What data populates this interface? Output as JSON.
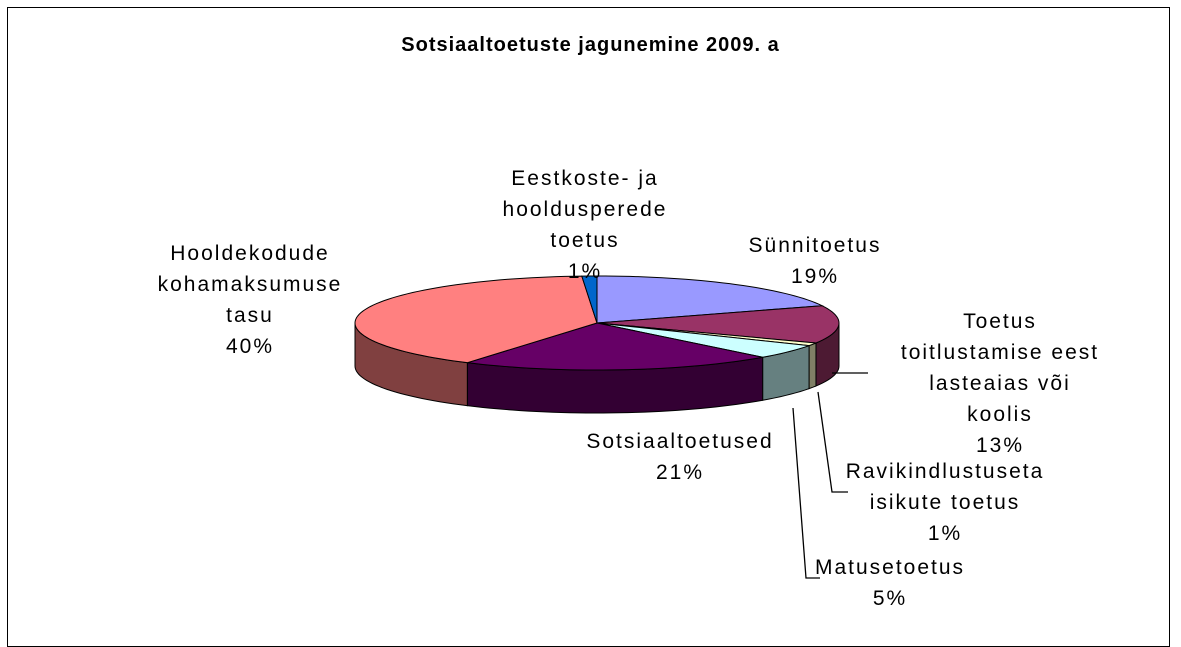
{
  "chart_data": {
    "type": "pie3d",
    "title": "Sotsiaaltoetuste jagunemine 2009. a",
    "categories": [
      "Sünnitoetus",
      "Toetus toitlustamise eest lasteaias või koolis",
      "Ravikindlustuseta isikute toetus",
      "Matusetoetus",
      "Sotsiaaltoetused",
      "Hooldekodude kohamaksumuse tasu",
      "Eestkoste- ja hooldusperede toetus"
    ],
    "values": [
      19,
      13,
      1,
      5,
      21,
      40,
      1
    ],
    "value_labels": [
      "19%",
      "13%",
      "1%",
      "5%",
      "21%",
      "40%",
      "1%"
    ],
    "colors": [
      "#9999ff",
      "#993366",
      "#ffffcc",
      "#ccffff",
      "#660066",
      "#ff8080",
      "#0066cc"
    ]
  }
}
